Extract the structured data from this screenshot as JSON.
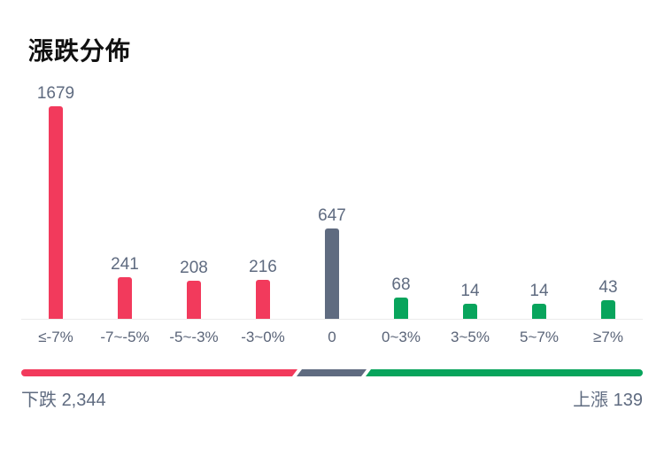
{
  "chart_data": {
    "type": "bar",
    "title": "漲跌分佈",
    "xlabel": "",
    "ylabel": "",
    "categories": [
      "≤-7%",
      "-7~-5%",
      "-5~-3%",
      "-3~0%",
      "0",
      "0~3%",
      "3~5%",
      "5~7%",
      "≥7%"
    ],
    "values": [
      1679,
      241,
      208,
      216,
      647,
      68,
      14,
      14,
      43
    ],
    "bar_colors": [
      "#f23a5c",
      "#f23a5c",
      "#f23a5c",
      "#f23a5c",
      "#5f6b80",
      "#08a45c",
      "#08a45c",
      "#08a45c",
      "#08a45c"
    ],
    "grid": false,
    "legend": "none"
  },
  "summary": {
    "down_label": "下跌",
    "down_count": "2,344",
    "up_label": "上漲",
    "up_count": "139"
  },
  "colors": {
    "down": "#f23a5c",
    "flat": "#5f6b80",
    "up": "#08a45c",
    "text_secondary": "#5f6b80"
  }
}
